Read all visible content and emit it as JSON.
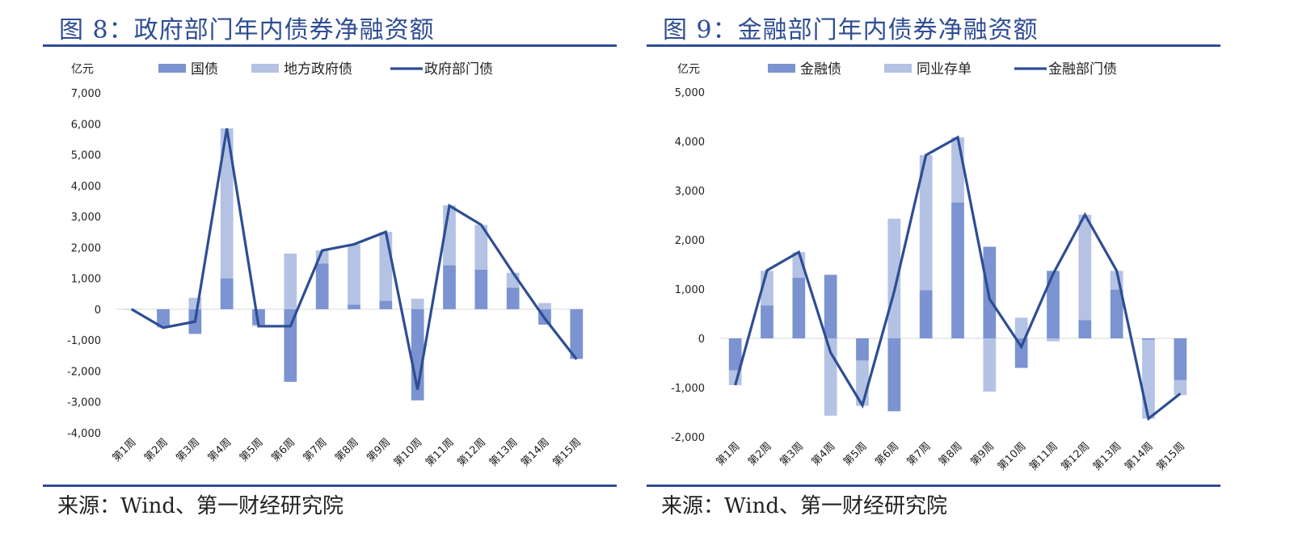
{
  "charts": [
    {
      "title": "图 8：政府部门年内债券净融资额",
      "source": "来源：Wind、第一财经研究院",
      "chart_data": {
        "type": "bar",
        "stacked": true,
        "unit_label": "亿元",
        "categories": [
          "第1周",
          "第2周",
          "第3周",
          "第4周",
          "第5周",
          "第6周",
          "第7周",
          "第8周",
          "第9周",
          "第10周",
          "第11周",
          "第12周",
          "第13周",
          "第14周",
          "第15周"
        ],
        "series": [
          {
            "name": "国债",
            "kind": "bar",
            "color": "#7b93d1",
            "values": [
              0,
              -550,
              -800,
              1000,
              -500,
              -2350,
              1480,
              150,
              270,
              -2950,
              1420,
              1280,
              700,
              -500,
              -1600
            ]
          },
          {
            "name": "地方政府债",
            "kind": "bar",
            "color": "#b4c2e4",
            "values": [
              0,
              -50,
              370,
              4850,
              -50,
              1800,
              420,
              1950,
              2230,
              340,
              1940,
              1450,
              480,
              200,
              -20
            ]
          },
          {
            "name": "政府部门债",
            "kind": "line",
            "color": "#2e4d93",
            "values": [
              0,
              -600,
              -400,
              5850,
              -550,
              -550,
              1900,
              2100,
              2500,
              -2600,
              3350,
              2730,
              1180,
              -300,
              -1620
            ]
          }
        ],
        "ylim": [
          -4000,
          7000
        ],
        "yticks": [
          -4000,
          -3000,
          -2000,
          -1000,
          0,
          1000,
          2000,
          3000,
          4000,
          5000,
          6000,
          7000
        ],
        "ytick_labels": [
          "-4,000",
          "-3,000",
          "-2,000",
          "-1,000",
          "0",
          "1,000",
          "2,000",
          "3,000",
          "4,000",
          "5,000",
          "6,000",
          "7,000"
        ],
        "legend_position": "top"
      }
    },
    {
      "title": "图 9：金融部门年内债券净融资额",
      "source": "来源：Wind、第一财经研究院",
      "chart_data": {
        "type": "bar",
        "stacked": true,
        "unit_label": "亿元",
        "categories": [
          "第1周",
          "第2周",
          "第3周",
          "第4周",
          "第5周",
          "第6周",
          "第7周",
          "第8周",
          "第9周",
          "第10周",
          "第11周",
          "第12周",
          "第13周",
          "第14周",
          "第15周"
        ],
        "series": [
          {
            "name": "金融债",
            "kind": "bar",
            "color": "#7b93d1",
            "values": [
              -650,
              670,
              1230,
              1290,
              -450,
              -1480,
              980,
              2760,
              1860,
              -600,
              1370,
              370,
              990,
              -30,
              -850
            ]
          },
          {
            "name": "同业存单",
            "kind": "bar",
            "color": "#b4c2e4",
            "values": [
              -300,
              700,
              520,
              -1570,
              -920,
              2430,
              2740,
              1320,
              -1080,
              420,
              -60,
              2140,
              380,
              -1600,
              -300
            ]
          },
          {
            "name": "金融部门债",
            "kind": "line",
            "color": "#2e4d93",
            "values": [
              -950,
              1380,
              1750,
              -290,
              -1360,
              950,
              3720,
              4080,
              800,
              -170,
              1310,
              2510,
              1370,
              -1630,
              -1120
            ]
          }
        ],
        "ylim": [
          -2000,
          5000
        ],
        "yticks": [
          -2000,
          -1000,
          0,
          1000,
          2000,
          3000,
          4000,
          5000
        ],
        "ytick_labels": [
          "-2,000",
          "-1,000",
          "0",
          "1,000",
          "2,000",
          "3,000",
          "4,000",
          "5,000"
        ],
        "legend_position": "top"
      }
    }
  ]
}
